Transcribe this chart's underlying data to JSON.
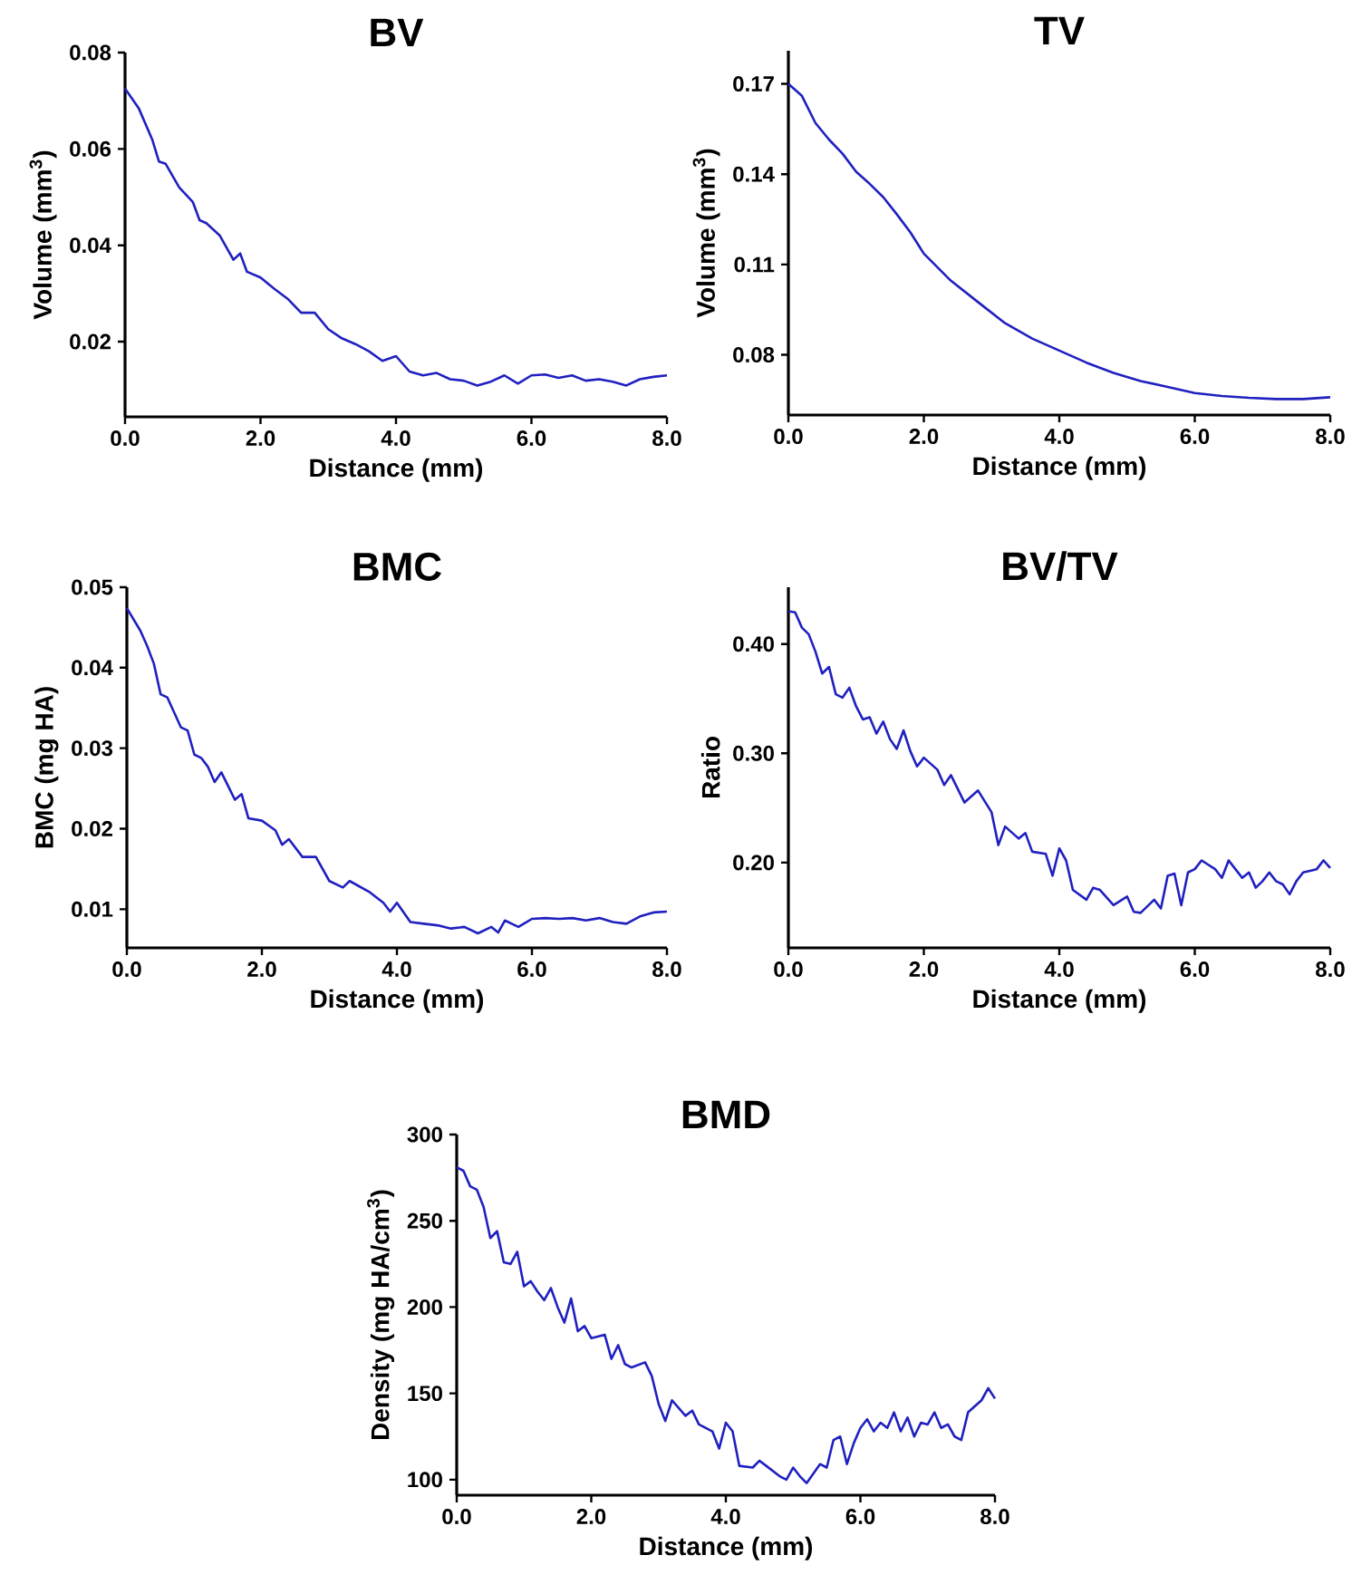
{
  "chart_data": [
    {
      "type": "line",
      "title": "BV",
      "xlabel": "Distance (mm)",
      "ylabel": "Volume (mm$^{3}$)",
      "x": [
        0,
        0.2,
        0.4,
        0.5,
        0.6,
        0.8,
        1.0,
        1.1,
        1.2,
        1.4,
        1.6,
        1.7,
        1.8,
        2.0,
        2.2,
        2.4,
        2.6,
        2.8,
        3.0,
        3.2,
        3.4,
        3.6,
        3.8,
        4.0,
        4.2,
        4.4,
        4.6,
        4.8,
        5.0,
        5.2,
        5.4,
        5.6,
        5.8,
        6.0,
        6.2,
        6.4,
        6.6,
        6.8,
        7.0,
        7.2,
        7.4,
        7.6,
        7.8,
        8.0
      ],
      "series": [
        {
          "color": "#2020c0",
          "values": [
            0.0725,
            0.0685,
            0.062,
            0.0574,
            0.0569,
            0.052,
            0.049,
            0.0452,
            0.0446,
            0.042,
            0.037,
            0.0383,
            0.0345,
            0.0333,
            0.031,
            0.0289,
            0.026,
            0.026,
            0.0226,
            0.0207,
            0.0195,
            0.018,
            0.016,
            0.017,
            0.0138,
            0.013,
            0.0135,
            0.0122,
            0.0119,
            0.0109,
            0.0117,
            0.013,
            0.0113,
            0.013,
            0.0132,
            0.0125,
            0.013,
            0.0119,
            0.0122,
            0.0117,
            0.0109,
            0.0122,
            0.0127,
            0.013
          ]
        }
      ],
      "xlim": [
        0,
        8
      ],
      "xticks": [
        {
          "value": 0,
          "label": "0.0"
        },
        {
          "value": 2,
          "label": "2.0"
        },
        {
          "value": 4,
          "label": "4.0"
        },
        {
          "value": 6,
          "label": "6.0"
        },
        {
          "value": 8,
          "label": "8.0"
        }
      ],
      "ylim": [
        0.0044,
        0.08
      ],
      "yticks": [
        0.02,
        0.04,
        0.06,
        0.08
      ]
    },
    {
      "type": "line",
      "title": "TV",
      "xlabel": "Distance (mm)",
      "ylabel": "Volume (mm$^{3}$)",
      "x": [
        0,
        0.2,
        0.4,
        0.6,
        0.8,
        1.0,
        1.2,
        1.4,
        1.6,
        1.8,
        2.0,
        2.4,
        2.8,
        3.2,
        3.6,
        4.0,
        4.4,
        4.8,
        5.2,
        5.6,
        6.0,
        6.4,
        6.8,
        7.2,
        7.6,
        8.0
      ],
      "series": [
        {
          "color": "#2020c0",
          "values": [
            0.17,
            0.166,
            0.157,
            0.1515,
            0.1468,
            0.1408,
            0.1368,
            0.1324,
            0.1267,
            0.1207,
            0.1136,
            0.1046,
            0.0975,
            0.0905,
            0.0854,
            0.0814,
            0.0774,
            0.074,
            0.0713,
            0.0693,
            0.0673,
            0.0663,
            0.0657,
            0.0653,
            0.0653,
            0.0659
          ]
        }
      ],
      "xlim": [
        0,
        8
      ],
      "xticks": [
        {
          "value": 0,
          "label": "0.0"
        },
        {
          "value": 2,
          "label": "2.0"
        },
        {
          "value": 4,
          "label": "4.0"
        },
        {
          "value": 6,
          "label": "6.0"
        },
        {
          "value": 8,
          "label": "8.0"
        }
      ],
      "ylim": [
        0.06,
        0.181
      ],
      "yticks": [
        0.08,
        0.11,
        0.14,
        0.17
      ]
    },
    {
      "type": "line",
      "title": "BMC",
      "xlabel": "Distance (mm)",
      "ylabel": "BMC (mg HA)",
      "x": [
        0,
        0.2,
        0.3,
        0.4,
        0.5,
        0.6,
        0.8,
        0.9,
        1.0,
        1.1,
        1.2,
        1.3,
        1.4,
        1.6,
        1.7,
        1.8,
        2.0,
        2.2,
        2.3,
        2.4,
        2.6,
        2.8,
        3.0,
        3.2,
        3.3,
        3.6,
        3.8,
        3.9,
        4.0,
        4.2,
        4.4,
        4.6,
        4.8,
        5.0,
        5.2,
        5.4,
        5.5,
        5.6,
        5.8,
        6.0,
        6.2,
        6.4,
        6.6,
        6.8,
        7.0,
        7.2,
        7.4,
        7.6,
        7.8,
        8.0
      ],
      "series": [
        {
          "color": "#2020c0",
          "values": [
            0.0474,
            0.0446,
            0.0427,
            0.0405,
            0.0367,
            0.0363,
            0.0326,
            0.0322,
            0.0292,
            0.0288,
            0.0277,
            0.0258,
            0.027,
            0.0236,
            0.0243,
            0.0213,
            0.021,
            0.0198,
            0.018,
            0.0187,
            0.0165,
            0.0165,
            0.0135,
            0.0127,
            0.0135,
            0.0121,
            0.0108,
            0.0097,
            0.0108,
            0.0084,
            0.0082,
            0.008,
            0.0076,
            0.0078,
            0.007,
            0.0078,
            0.0071,
            0.0086,
            0.0078,
            0.0088,
            0.0089,
            0.0088,
            0.0089,
            0.0086,
            0.0089,
            0.0084,
            0.0082,
            0.0091,
            0.0096,
            0.0097
          ]
        }
      ],
      "xlim": [
        0,
        8
      ],
      "xticks": [
        {
          "value": 0,
          "label": "0.0"
        },
        {
          "value": 2,
          "label": "2.0"
        },
        {
          "value": 4,
          "label": "4.0"
        },
        {
          "value": 6,
          "label": "6.0"
        },
        {
          "value": 8,
          "label": "8.0"
        }
      ],
      "ylim": [
        0.0052,
        0.05
      ],
      "yticks": [
        0.01,
        0.02,
        0.03,
        0.04,
        0.05
      ]
    },
    {
      "type": "line",
      "title": "BV/TV",
      "xlabel": "Distance (mm)",
      "ylabel": "Ratio",
      "x": [
        0,
        0.1,
        0.2,
        0.3,
        0.4,
        0.5,
        0.6,
        0.7,
        0.8,
        0.9,
        1.0,
        1.1,
        1.2,
        1.3,
        1.4,
        1.5,
        1.6,
        1.7,
        1.8,
        1.9,
        2.0,
        2.2,
        2.3,
        2.4,
        2.6,
        2.8,
        3.0,
        3.1,
        3.2,
        3.4,
        3.5,
        3.6,
        3.8,
        3.9,
        4.0,
        4.1,
        4.2,
        4.4,
        4.5,
        4.6,
        4.8,
        5.0,
        5.1,
        5.2,
        5.4,
        5.5,
        5.6,
        5.7,
        5.8,
        5.9,
        6.0,
        6.1,
        6.3,
        6.4,
        6.5,
        6.6,
        6.7,
        6.8,
        6.9,
        7.0,
        7.1,
        7.2,
        7.3,
        7.4,
        7.5,
        7.6,
        7.8,
        7.9,
        8.0
      ],
      "series": [
        {
          "color": "#2020c0",
          "values": [
            0.43,
            0.429,
            0.415,
            0.409,
            0.393,
            0.373,
            0.379,
            0.354,
            0.351,
            0.36,
            0.343,
            0.331,
            0.333,
            0.318,
            0.329,
            0.313,
            0.304,
            0.321,
            0.302,
            0.288,
            0.296,
            0.285,
            0.271,
            0.28,
            0.255,
            0.266,
            0.246,
            0.216,
            0.233,
            0.222,
            0.227,
            0.21,
            0.208,
            0.188,
            0.213,
            0.202,
            0.175,
            0.166,
            0.177,
            0.175,
            0.161,
            0.169,
            0.155,
            0.154,
            0.166,
            0.158,
            0.188,
            0.19,
            0.161,
            0.191,
            0.194,
            0.202,
            0.194,
            0.186,
            0.202,
            0.194,
            0.186,
            0.191,
            0.177,
            0.183,
            0.191,
            0.183,
            0.18,
            0.171,
            0.183,
            0.191,
            0.194,
            0.202,
            0.195
          ]
        }
      ],
      "xlim": [
        0,
        8
      ],
      "xticks": [
        {
          "value": 0,
          "label": "0.0"
        },
        {
          "value": 2,
          "label": "2.0"
        },
        {
          "value": 4,
          "label": "4.0"
        },
        {
          "value": 6,
          "label": "6.0"
        },
        {
          "value": 8,
          "label": "8.0"
        }
      ],
      "ylim": [
        0.122,
        0.452
      ],
      "yticks": [
        {
          "value": 0.2,
          "label": "0.20"
        },
        {
          "value": 0.3,
          "label": "0.30"
        },
        {
          "value": 0.4,
          "label": "0.40"
        }
      ]
    },
    {
      "type": "line",
      "title": "BMD",
      "xlabel": "Distance (mm)",
      "ylabel": "Density (mg HA/cm$^{3}$)",
      "x": [
        0,
        0.1,
        0.2,
        0.3,
        0.4,
        0.5,
        0.6,
        0.7,
        0.8,
        0.9,
        1.0,
        1.1,
        1.2,
        1.3,
        1.4,
        1.5,
        1.6,
        1.7,
        1.8,
        1.9,
        2.0,
        2.2,
        2.3,
        2.4,
        2.5,
        2.6,
        2.8,
        2.9,
        3.0,
        3.1,
        3.2,
        3.4,
        3.5,
        3.6,
        3.8,
        3.9,
        4.0,
        4.1,
        4.2,
        4.4,
        4.5,
        4.6,
        4.8,
        4.9,
        5.0,
        5.1,
        5.2,
        5.4,
        5.5,
        5.6,
        5.7,
        5.8,
        5.9,
        6.0,
        6.1,
        6.2,
        6.3,
        6.4,
        6.5,
        6.6,
        6.7,
        6.8,
        6.9,
        7.0,
        7.1,
        7.2,
        7.3,
        7.4,
        7.5,
        7.6,
        7.8,
        7.9,
        8.0
      ],
      "series": [
        {
          "color": "#2020c0",
          "values": [
            281,
            279,
            270,
            268,
            258,
            240,
            244,
            226,
            225,
            232,
            212,
            215,
            209,
            204,
            211,
            200,
            191,
            205,
            186,
            189,
            182,
            184,
            170,
            178,
            167,
            165,
            168,
            160,
            144,
            134,
            146,
            137,
            140,
            132,
            128,
            118,
            133,
            128,
            108,
            107,
            111,
            108,
            102,
            100,
            107,
            102,
            98,
            109,
            107,
            123,
            125,
            109,
            121,
            130,
            135,
            128,
            133,
            130,
            139,
            128,
            136,
            125,
            133,
            132,
            139,
            130,
            132,
            125,
            123,
            139,
            146,
            153,
            147
          ]
        }
      ],
      "xlim": [
        0,
        8
      ],
      "xticks": [
        {
          "value": 0,
          "label": "0.0"
        },
        {
          "value": 2,
          "label": "2.0"
        },
        {
          "value": 4,
          "label": "4.0"
        },
        {
          "value": 6,
          "label": "6.0"
        },
        {
          "value": 8,
          "label": "8.0"
        }
      ],
      "ylim": [
        91,
        300
      ],
      "yticks": [
        100,
        150,
        200,
        250,
        300
      ]
    }
  ]
}
